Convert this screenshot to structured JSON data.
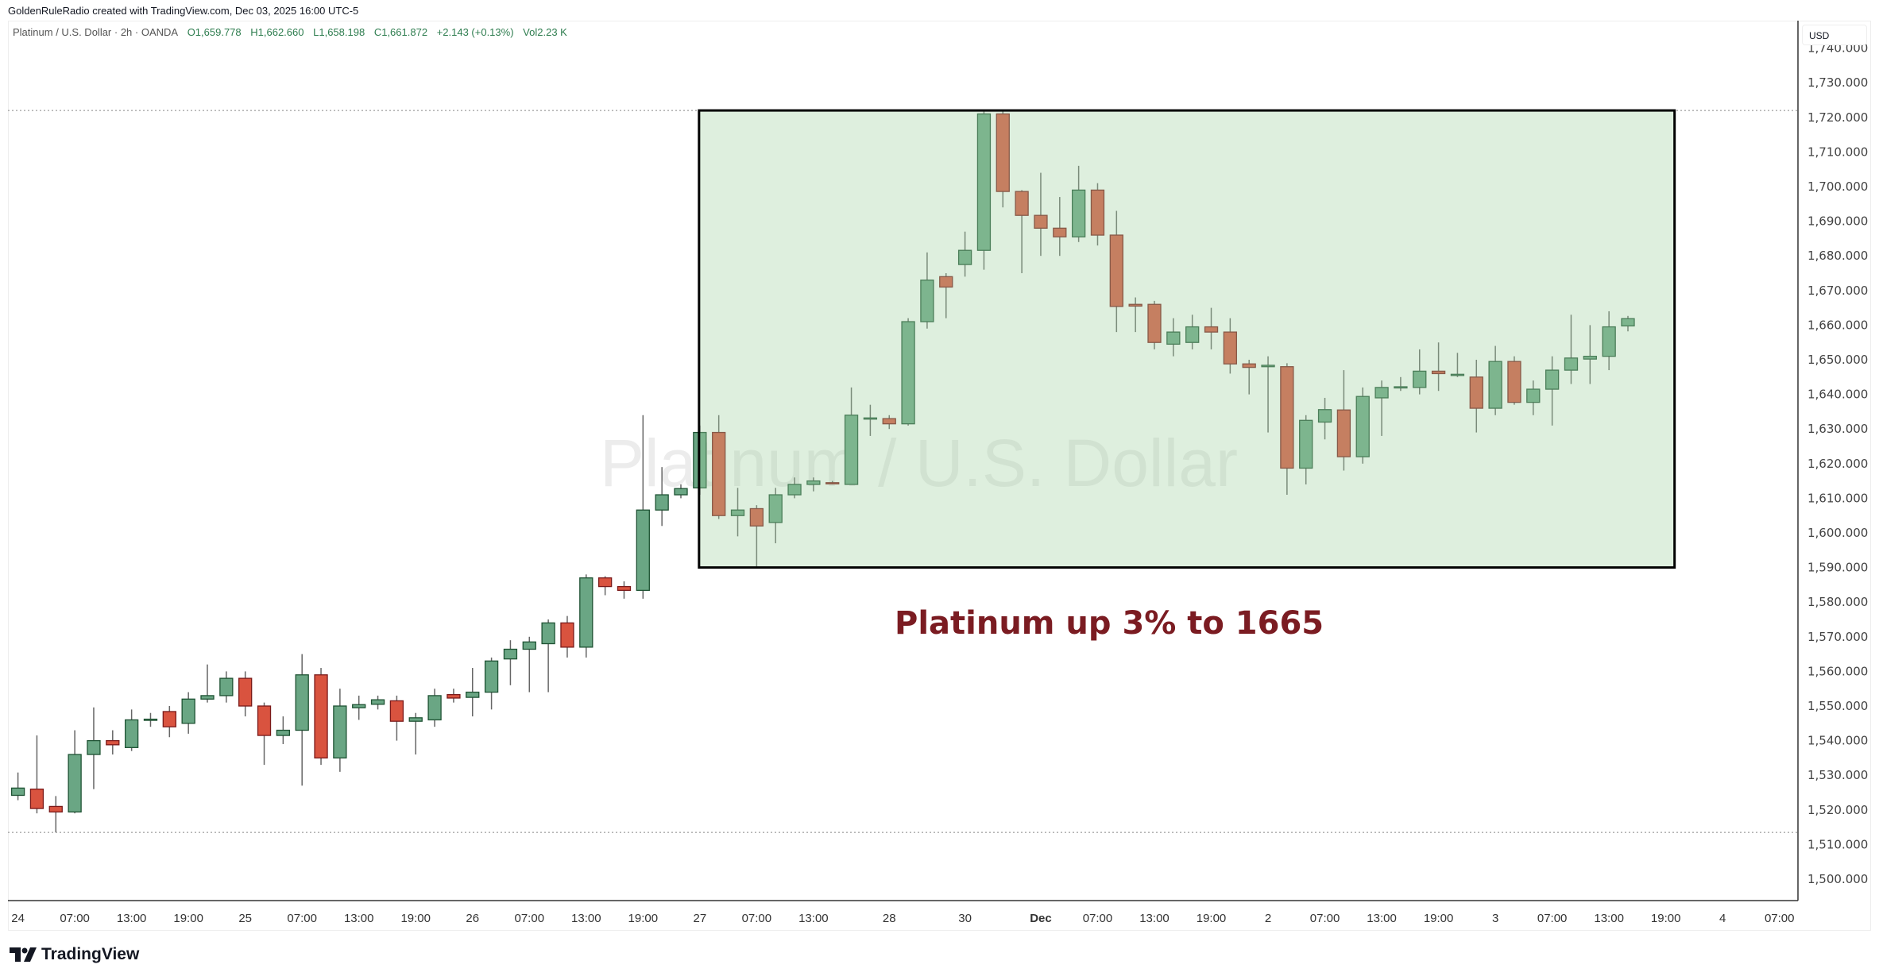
{
  "credit": "GoldenRuleRadio created with TradingView.com, Dec 03, 2025 16:00 UTC-5",
  "legend": {
    "symbol": "Platinum / U.S. Dollar · 2h · OANDA",
    "open": "O1,659.778",
    "high": "H1,662.660",
    "low": "L1,658.198",
    "close": "C1,661.872",
    "change": "+2.143 (+0.13%)",
    "volume": "Vol2.23 K"
  },
  "currency": "USD",
  "watermark": "Platinum / U.S. Dollar",
  "annotation": "Platinum up 3% to 1665",
  "logo": "TradingView",
  "colors": {
    "up": "#6aa684",
    "up_border": "#1e5233",
    "down": "#d9533f",
    "down_border": "#7a1a1a",
    "box_fill": "rgba(160,210,160,0.35)",
    "annotation": "#7b1c22"
  },
  "chart_data": {
    "type": "candlestick",
    "title": "Platinum / U.S. Dollar · 2h · OANDA",
    "ylabel": "USD",
    "ylim": [
      1495,
      1745
    ],
    "yticks": [
      1500,
      1510,
      1520,
      1530,
      1540,
      1550,
      1560,
      1570,
      1580,
      1590,
      1600,
      1610,
      1620,
      1630,
      1640,
      1650,
      1660,
      1670,
      1680,
      1690,
      1700,
      1710,
      1720,
      1730,
      1740
    ],
    "ytick_labels": [
      "1,500.000",
      "1,510.000",
      "1,520.000",
      "1,530.000",
      "1,540.000",
      "1,550.000",
      "1,560.000",
      "1,570.000",
      "1,580.000",
      "1,590.000",
      "1,600.000",
      "1,610.000",
      "1,620.000",
      "1,630.000",
      "1,640.000",
      "1,650.000",
      "1,660.000",
      "1,670.000",
      "1,680.000",
      "1,690.000",
      "1,700.000",
      "1,710.000",
      "1,720.000",
      "1,730.000",
      "1,740.000"
    ],
    "xticks": [
      {
        "bar": 0,
        "label": "24"
      },
      {
        "bar": 3,
        "label": "07:00"
      },
      {
        "bar": 6,
        "label": "13:00"
      },
      {
        "bar": 9,
        "label": "19:00"
      },
      {
        "bar": 12,
        "label": "25"
      },
      {
        "bar": 15,
        "label": "07:00"
      },
      {
        "bar": 18,
        "label": "13:00"
      },
      {
        "bar": 21,
        "label": "19:00"
      },
      {
        "bar": 24,
        "label": "26"
      },
      {
        "bar": 27,
        "label": "07:00"
      },
      {
        "bar": 30,
        "label": "13:00"
      },
      {
        "bar": 33,
        "label": "19:00"
      },
      {
        "bar": 36,
        "label": "27"
      },
      {
        "bar": 39,
        "label": "07:00"
      },
      {
        "bar": 42,
        "label": "13:00"
      },
      {
        "bar": 46,
        "label": "28"
      },
      {
        "bar": 50,
        "label": "30"
      },
      {
        "bar": 54,
        "label": "Dec",
        "bold": true
      },
      {
        "bar": 57,
        "label": "07:00"
      },
      {
        "bar": 60,
        "label": "13:00"
      },
      {
        "bar": 63,
        "label": "19:00"
      },
      {
        "bar": 66,
        "label": "2"
      },
      {
        "bar": 69,
        "label": "07:00"
      },
      {
        "bar": 72,
        "label": "13:00"
      },
      {
        "bar": 75,
        "label": "19:00"
      },
      {
        "bar": 78,
        "label": "3"
      },
      {
        "bar": 81,
        "label": "07:00"
      },
      {
        "bar": 84,
        "label": "13:00"
      },
      {
        "bar": 87,
        "label": "19:00"
      },
      {
        "bar": 90,
        "label": "4"
      },
      {
        "bar": 93,
        "label": "07:00"
      }
    ],
    "ohlc_fields": [
      "open",
      "high",
      "low",
      "close"
    ],
    "candles": [
      [
        1524.2,
        1530.8,
        1522.8,
        1526.3
      ],
      [
        1526,
        1541.5,
        1519,
        1520.4
      ],
      [
        1521,
        1524,
        1513.5,
        1519.4
      ],
      [
        1519.4,
        1543,
        1519,
        1536
      ],
      [
        1536,
        1549.6,
        1526,
        1540
      ],
      [
        1540,
        1543,
        1536,
        1538.8
      ],
      [
        1538,
        1549,
        1537,
        1546
      ],
      [
        1546,
        1548,
        1544,
        1546.2
      ],
      [
        1548.4,
        1550,
        1541,
        1544
      ],
      [
        1545,
        1554,
        1542,
        1552
      ],
      [
        1552,
        1562,
        1551,
        1553
      ],
      [
        1553,
        1560,
        1551,
        1558
      ],
      [
        1558,
        1560,
        1547,
        1550
      ],
      [
        1550,
        1551,
        1533,
        1541.5
      ],
      [
        1541.5,
        1547,
        1539,
        1543
      ],
      [
        1543,
        1565,
        1527,
        1559
      ],
      [
        1559,
        1561,
        1533,
        1535
      ],
      [
        1535,
        1555,
        1531,
        1550
      ],
      [
        1549.5,
        1553,
        1546,
        1550.4
      ],
      [
        1550.5,
        1553,
        1549,
        1551.8
      ],
      [
        1551.5,
        1553,
        1540,
        1545.6
      ],
      [
        1545.6,
        1548,
        1536,
        1546.6
      ],
      [
        1546,
        1555,
        1544,
        1553
      ],
      [
        1553.3,
        1555,
        1551,
        1552.3
      ],
      [
        1552.5,
        1561,
        1547,
        1554
      ],
      [
        1554,
        1564,
        1549,
        1563
      ],
      [
        1563.6,
        1569,
        1556,
        1566.4
      ],
      [
        1566.4,
        1570,
        1554,
        1568.5
      ],
      [
        1568,
        1575,
        1554,
        1574
      ],
      [
        1574,
        1576,
        1564,
        1567
      ],
      [
        1567,
        1588,
        1564,
        1587
      ],
      [
        1587,
        1587.5,
        1582,
        1584.5
      ],
      [
        1584.5,
        1586,
        1581,
        1583.4
      ],
      [
        1583.4,
        1634,
        1581,
        1606.6
      ],
      [
        1606.6,
        1619,
        1602,
        1611
      ],
      [
        1611,
        1614,
        1610,
        1612.8
      ],
      [
        1613,
        1631,
        1611,
        1629
      ],
      [
        1629,
        1634,
        1604,
        1605
      ],
      [
        1605,
        1613,
        1599,
        1606.6
      ],
      [
        1607,
        1608,
        1590,
        1602
      ],
      [
        1603,
        1613,
        1597,
        1611
      ],
      [
        1611,
        1616,
        1610,
        1614
      ],
      [
        1614,
        1616,
        1612,
        1615
      ],
      [
        1614.5,
        1615,
        1614,
        1614.2
      ],
      [
        1614,
        1642,
        1614,
        1634
      ],
      [
        1633,
        1637,
        1628,
        1633.2
      ],
      [
        1633,
        1634,
        1630,
        1631.5
      ],
      [
        1631.5,
        1662,
        1631,
        1661
      ],
      [
        1661,
        1681,
        1659,
        1673
      ],
      [
        1674,
        1675,
        1662,
        1671
      ],
      [
        1677.5,
        1687,
        1674,
        1681.6
      ],
      [
        1681.6,
        1722,
        1676,
        1721
      ],
      [
        1721,
        1722,
        1694,
        1698.6
      ],
      [
        1698.6,
        1699,
        1675,
        1691.7
      ],
      [
        1691.7,
        1704,
        1680,
        1688
      ],
      [
        1688,
        1697,
        1680,
        1685.5
      ],
      [
        1685.5,
        1706,
        1684,
        1699
      ],
      [
        1699,
        1701,
        1683,
        1686
      ],
      [
        1686,
        1693,
        1658,
        1665.4
      ],
      [
        1666,
        1668,
        1658,
        1665.5
      ],
      [
        1666,
        1667,
        1653,
        1655
      ],
      [
        1654.5,
        1662,
        1651,
        1658
      ],
      [
        1655,
        1663,
        1653,
        1659.5
      ],
      [
        1659.5,
        1665,
        1653,
        1658
      ],
      [
        1658,
        1662,
        1646,
        1648.8
      ],
      [
        1648.8,
        1650,
        1640,
        1647.8
      ],
      [
        1648,
        1651,
        1629,
        1648.4
      ],
      [
        1648,
        1649,
        1611,
        1618.7
      ],
      [
        1618.7,
        1634,
        1614,
        1632.5
      ],
      [
        1632,
        1639,
        1627,
        1635.6
      ],
      [
        1635.5,
        1647,
        1618,
        1622
      ],
      [
        1622,
        1642,
        1620,
        1639.4
      ],
      [
        1639,
        1644,
        1628,
        1642
      ],
      [
        1642,
        1645,
        1641,
        1642.2
      ],
      [
        1642,
        1653,
        1640,
        1646.7
      ],
      [
        1646.7,
        1655,
        1641,
        1646
      ],
      [
        1645.6,
        1652,
        1645,
        1645.8
      ],
      [
        1645,
        1650,
        1629,
        1636
      ],
      [
        1636,
        1654,
        1634,
        1649.5
      ],
      [
        1649.5,
        1651,
        1637,
        1637.7
      ],
      [
        1637.7,
        1644,
        1634,
        1641.5
      ],
      [
        1641.5,
        1651,
        1631,
        1647
      ],
      [
        1647,
        1663,
        1643,
        1650.5
      ],
      [
        1650.2,
        1660,
        1643,
        1651
      ],
      [
        1651,
        1664,
        1647,
        1659.5
      ],
      [
        1659.778,
        1662.66,
        1658.198,
        1661.872
      ]
    ],
    "box": {
      "bar_start": 36,
      "bar_end": 87,
      "price_top": 1722,
      "price_bottom": 1590
    },
    "dotted_lines": [
      1722,
      1513.5
    ]
  }
}
